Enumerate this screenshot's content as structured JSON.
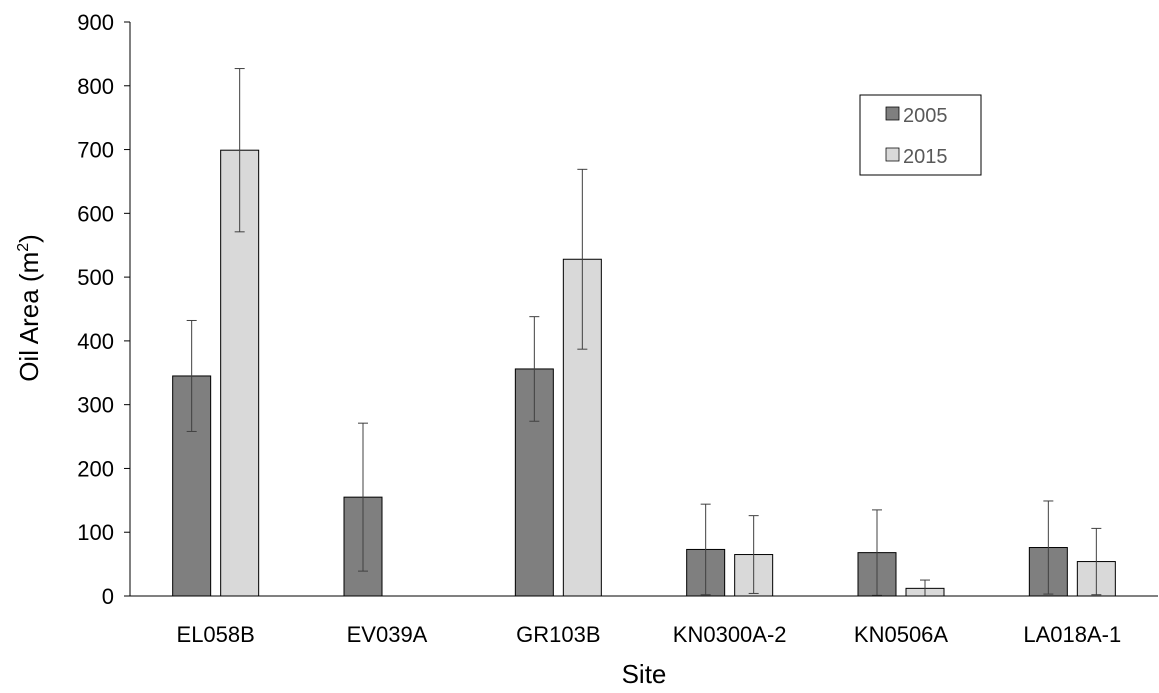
{
  "chart_data": {
    "type": "bar",
    "title": "",
    "xlabel": "Site",
    "ylabel": {
      "main": "Oil Area (m",
      "sup": "2",
      "close": ")"
    },
    "categories": [
      "EL058B",
      "EV039A",
      "GR103B",
      "KN0300A-2",
      "KN0506A",
      "LA018A-1"
    ],
    "series": [
      {
        "name": "2005",
        "color": "#7f7f7f",
        "values": [
          345,
          155,
          356,
          73,
          68,
          76
        ],
        "errors": [
          87,
          116,
          82,
          71,
          67,
          73
        ]
      },
      {
        "name": "2015",
        "color": "#d9d9d9",
        "values": [
          699,
          null,
          528,
          65,
          12,
          54
        ],
        "errors": [
          128,
          null,
          141,
          61,
          13,
          52
        ]
      }
    ],
    "ylim": [
      0,
      900
    ],
    "yticks": [
      0,
      100,
      200,
      300,
      400,
      500,
      600,
      700,
      800,
      900
    ],
    "grid": false,
    "legend_position": "top-right"
  }
}
